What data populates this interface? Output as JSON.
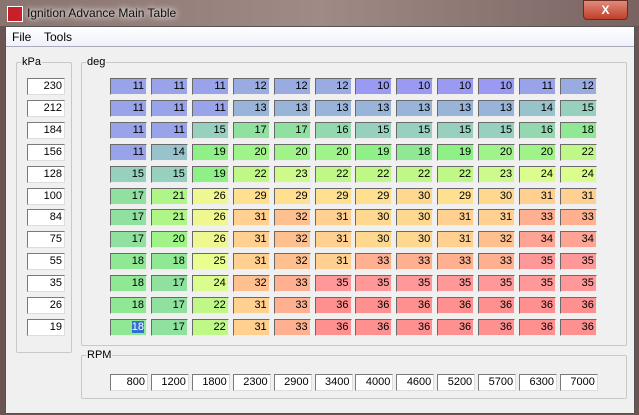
{
  "window": {
    "title": "Ignition Advance Main Table",
    "close_label": "X",
    "icon": "app-icon"
  },
  "menu": [
    "File",
    "Tools"
  ],
  "kpa": {
    "label": "kPa",
    "values": [
      "230",
      "212",
      "184",
      "156",
      "128",
      "100",
      "84",
      "75",
      "55",
      "35",
      "26",
      "19"
    ]
  },
  "deg": {
    "label": "deg",
    "rows": [
      [
        11,
        11,
        11,
        12,
        12,
        12,
        10,
        10,
        10,
        10,
        11,
        12
      ],
      [
        11,
        11,
        11,
        13,
        13,
        13,
        13,
        13,
        13,
        13,
        14,
        15
      ],
      [
        11,
        11,
        15,
        17,
        17,
        16,
        15,
        15,
        15,
        15,
        16,
        18
      ],
      [
        11,
        14,
        19,
        20,
        20,
        20,
        19,
        18,
        19,
        20,
        20,
        22
      ],
      [
        15,
        15,
        19,
        22,
        23,
        22,
        22,
        22,
        22,
        23,
        24,
        24
      ],
      [
        17,
        21,
        26,
        29,
        29,
        29,
        29,
        30,
        29,
        30,
        31,
        31
      ],
      [
        17,
        21,
        26,
        31,
        32,
        31,
        30,
        30,
        31,
        31,
        33,
        33
      ],
      [
        17,
        20,
        26,
        31,
        32,
        31,
        30,
        30,
        31,
        32,
        34,
        34
      ],
      [
        18,
        18,
        25,
        31,
        32,
        31,
        33,
        33,
        33,
        33,
        35,
        35
      ],
      [
        18,
        17,
        24,
        32,
        33,
        35,
        35,
        35,
        35,
        35,
        35,
        35
      ],
      [
        18,
        17,
        22,
        31,
        33,
        36,
        36,
        36,
        36,
        36,
        36,
        36
      ],
      [
        18,
        17,
        22,
        31,
        33,
        36,
        36,
        36,
        36,
        36,
        36,
        36
      ]
    ],
    "selected_cell": {
      "row": 11,
      "col": 0
    }
  },
  "rpm": {
    "label": "RPM",
    "values": [
      "800",
      "1200",
      "1800",
      "2300",
      "2900",
      "3400",
      "4000",
      "4600",
      "5200",
      "5700",
      "6300",
      "7000"
    ]
  },
  "colors": {
    "low": "#9a9af2",
    "mid_low": "#98d0c0",
    "mid": "#90f08c",
    "mid_high": "#ffe090",
    "high": "#ff9090"
  }
}
